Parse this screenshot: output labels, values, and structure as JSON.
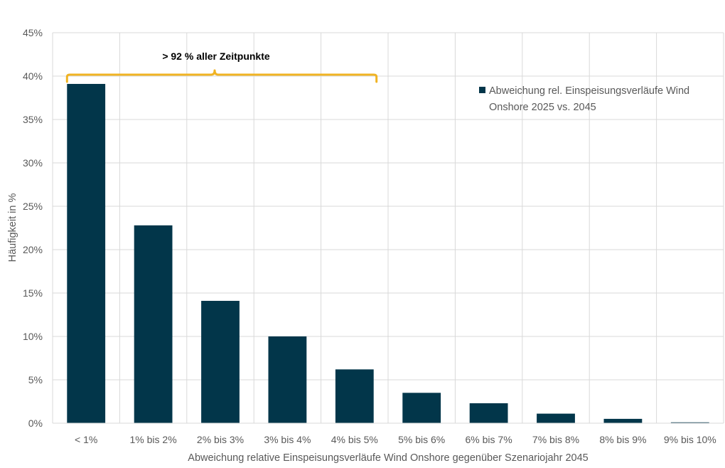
{
  "chart_data": {
    "type": "bar",
    "title": "",
    "xlabel": "Abweichung relative Einspeisungsverläufe Wind Onshore gegenüber Szenariojahr 2045",
    "ylabel": "Häufigkeit in %",
    "ylim": [
      0,
      45
    ],
    "yticks": [
      0,
      5,
      10,
      15,
      20,
      25,
      30,
      35,
      40,
      45
    ],
    "ytick_labels": [
      "0%",
      "5%",
      "10%",
      "15%",
      "20%",
      "25%",
      "30%",
      "35%",
      "40%",
      "45%"
    ],
    "grid": true,
    "categories": [
      "< 1%",
      "1% bis 2%",
      "2% bis 3%",
      "3% bis 4%",
      "4% bis 5%",
      "5% bis 6%",
      "6% bis 7%",
      "7% bis 8%",
      "8% bis 9%",
      "9% bis 10%"
    ],
    "series": [
      {
        "name": "Abweichung rel. Einspeisungsverläufe Wind Onshore 2025 vs. 2045",
        "values": [
          39.1,
          22.8,
          14.1,
          10.0,
          6.2,
          3.5,
          2.3,
          1.1,
          0.5,
          0.1
        ],
        "color": "#02364a"
      }
    ],
    "legend": {
      "position": "top-right",
      "lines": [
        "Abweichung rel. Einspeisungsverläufe Wind",
        "Onshore 2025 vs. 2045"
      ]
    },
    "annotation": {
      "text": "> 92 % aller Zeitpunkte",
      "span_categories": [
        "< 1%",
        "4% bis 5%"
      ],
      "color": "#f0b323"
    }
  }
}
